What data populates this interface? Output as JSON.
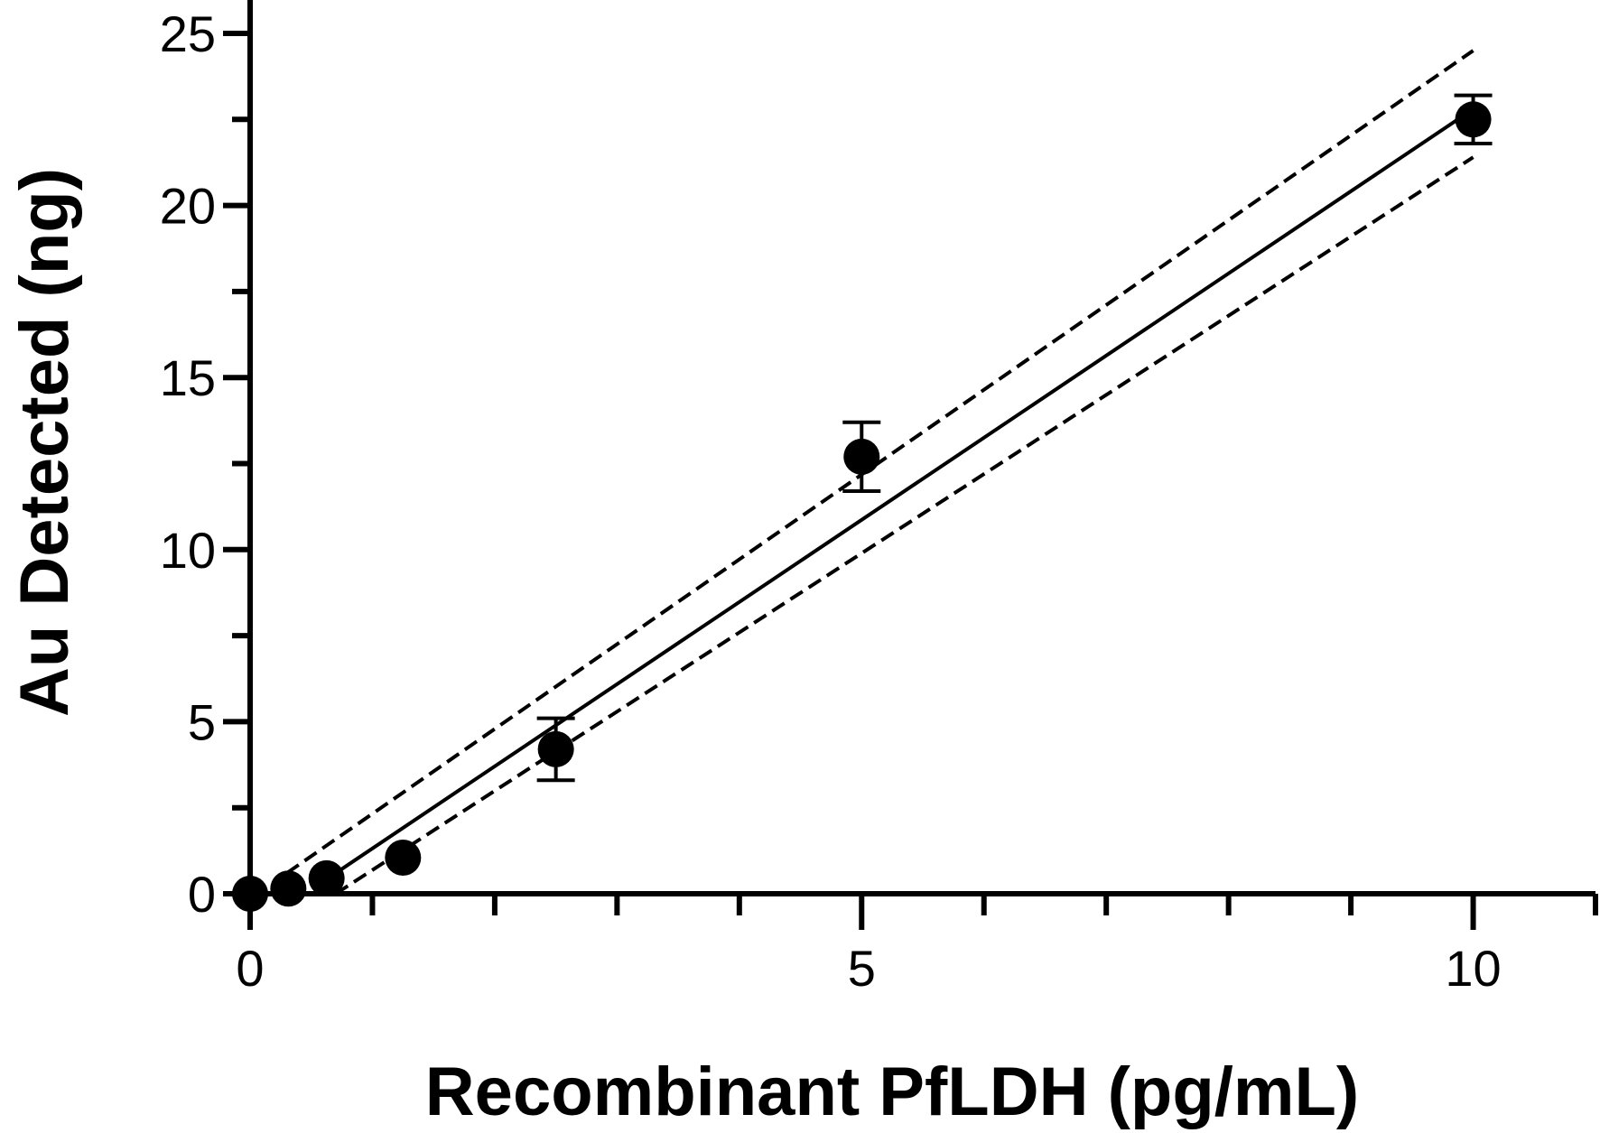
{
  "chart_data": {
    "type": "scatter",
    "title": "",
    "xlabel": "Recombinant PfLDH (pg/mL)",
    "ylabel": "Au Detected (ng)",
    "xlim": [
      0,
      11
    ],
    "ylim": [
      0,
      25
    ],
    "x_major_ticks": [
      0,
      5,
      10
    ],
    "x_minor_ticks": [
      1,
      2,
      3,
      4,
      6,
      7,
      8,
      9,
      11
    ],
    "y_major_ticks": [
      0,
      5,
      10,
      15,
      20,
      25
    ],
    "y_minor_ticks": [
      2.5,
      7.5,
      12.5,
      17.5,
      22.5
    ],
    "x_tick_labels": [
      "0",
      "5",
      "10"
    ],
    "y_tick_labels": [
      "0",
      "5",
      "10",
      "15",
      "20",
      "25"
    ],
    "grid": false,
    "legend": "none",
    "series": [
      {
        "kind": "points",
        "x": [
          0,
          0.3125,
          0.625,
          1.25,
          2.5,
          5,
          10
        ],
        "y": [
          0,
          0.15,
          0.45,
          1.05,
          4.2,
          12.7,
          22.5
        ],
        "error": [
          0,
          0,
          0,
          0,
          0.9,
          1.0,
          0.7
        ],
        "color": "#000000"
      },
      {
        "kind": "fit-line",
        "style": "solid",
        "x": [
          0.7,
          10
        ],
        "y": [
          0.6,
          22.8
        ],
        "color": "#000000"
      },
      {
        "kind": "confidence-band-upper",
        "style": "dashed",
        "x": [
          0.3,
          10
        ],
        "y": [
          0.6,
          24.5
        ],
        "color": "#000000"
      },
      {
        "kind": "confidence-band-lower",
        "style": "dashed",
        "x": [
          0.7,
          10
        ],
        "y": [
          0.0,
          21.4
        ],
        "color": "#000000"
      }
    ]
  }
}
